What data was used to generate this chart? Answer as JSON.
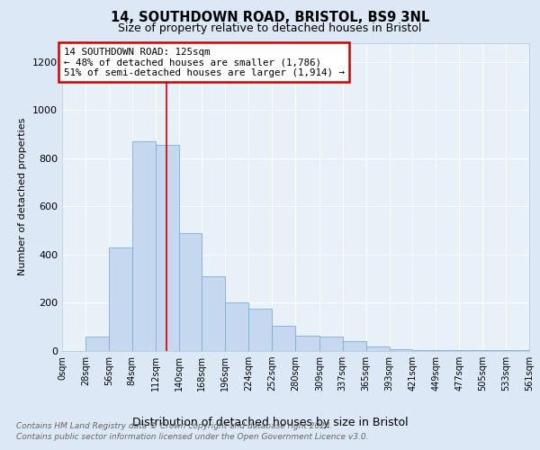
{
  "title1": "14, SOUTHDOWN ROAD, BRISTOL, BS9 3NL",
  "title2": "Size of property relative to detached houses in Bristol",
  "xlabel": "Distribution of detached houses by size in Bristol",
  "ylabel": "Number of detached properties",
  "annotation_line1": "14 SOUTHDOWN ROAD: 125sqm",
  "annotation_line2": "← 48% of detached houses are smaller (1,786)",
  "annotation_line3": "51% of semi-detached houses are larger (1,914) →",
  "bin_edges": [
    0,
    28,
    56,
    84,
    112,
    140,
    168,
    196,
    224,
    252,
    280,
    309,
    337,
    365,
    393,
    421,
    449,
    477,
    505,
    533,
    561
  ],
  "bar_heights": [
    0,
    60,
    430,
    870,
    855,
    490,
    310,
    200,
    175,
    105,
    65,
    60,
    40,
    20,
    8,
    5,
    5,
    2,
    2,
    2
  ],
  "bar_color": "#c5d8f0",
  "bar_edge_color": "#7aaed6",
  "vline_color": "#cc0000",
  "vline_x": 125,
  "ylim": [
    0,
    1280
  ],
  "yticks": [
    0,
    200,
    400,
    600,
    800,
    1000,
    1200
  ],
  "tick_labels": [
    "0sqm",
    "28sqm",
    "56sqm",
    "84sqm",
    "112sqm",
    "140sqm",
    "168sqm",
    "196sqm",
    "224sqm",
    "252sqm",
    "280sqm",
    "309sqm",
    "337sqm",
    "365sqm",
    "393sqm",
    "421sqm",
    "449sqm",
    "477sqm",
    "505sqm",
    "533sqm",
    "561sqm"
  ],
  "footnote1": "Contains HM Land Registry data © Crown copyright and database right 2024.",
  "footnote2": "Contains public sector information licensed under the Open Government Licence v3.0.",
  "fig_bg_color": "#dce8f5",
  "plot_bg_color": "#e8f0f8"
}
